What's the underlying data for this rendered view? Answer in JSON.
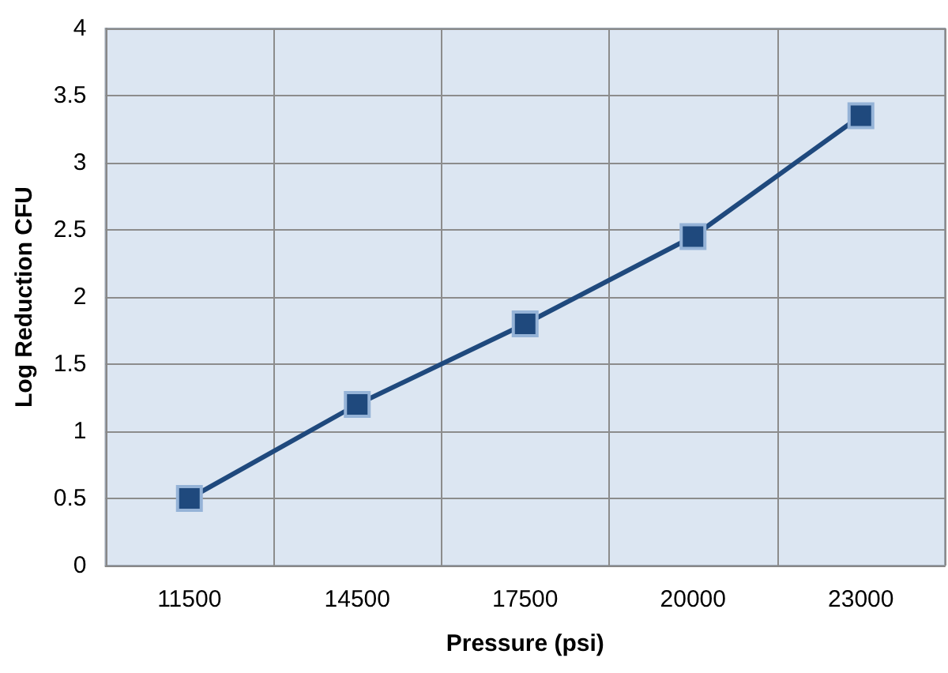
{
  "chart_data": {
    "type": "line",
    "xlabel": "Pressure (psi)",
    "ylabel": "Log Reduction CFU",
    "categories": [
      "11500",
      "14500",
      "17500",
      "20000",
      "23000"
    ],
    "series": [
      {
        "color": "#1f497d",
        "values": [
          0.5,
          1.2,
          1.8,
          2.45,
          3.35
        ]
      }
    ],
    "ylim": [
      0,
      4
    ],
    "yticks": [
      0,
      0.5,
      1,
      1.5,
      2,
      2.5,
      3,
      3.5,
      4
    ],
    "grid": true,
    "marker": "square",
    "line_style": "solid"
  }
}
